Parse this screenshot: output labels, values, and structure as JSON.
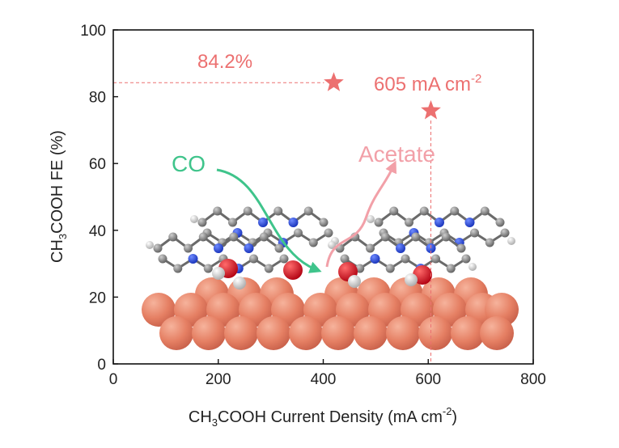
{
  "chart_data": {
    "type": "scatter",
    "title": "",
    "xlabel": {
      "main": "CH",
      "sub": "3",
      "rest": "COOH Current Density (mA cm",
      "sup": "-2",
      "tail": ")"
    },
    "ylabel": {
      "main": "CH",
      "sub": "3",
      "rest": "COOH FE (%)"
    },
    "xlim": [
      0,
      800
    ],
    "ylim": [
      0,
      100
    ],
    "xticks": [
      "0",
      "200",
      "400",
      "600",
      "800"
    ],
    "yticks": [
      "0",
      "20",
      "40",
      "60",
      "80",
      "100"
    ],
    "series": [
      {
        "name": "CH3COOH",
        "marker": "star",
        "color": "#ec7070",
        "points": [
          {
            "x": 420,
            "y": 84.2
          },
          {
            "x": 605,
            "y": 75.8
          }
        ]
      }
    ],
    "annotations": {
      "fe_label": "84.2%",
      "jd_label_main": "605 mA cm",
      "jd_label_sup": "-2",
      "co_label": "CO",
      "acetate_label": "Acetate"
    }
  },
  "colors": {
    "accent": "#ec7070",
    "co": "#3fc48b",
    "acetate": "#f2a0a8",
    "copper": "#e57f63",
    "carbon": "#7a7a7a",
    "nitrogen": "#1f3fd6",
    "oxygen": "#e01020"
  }
}
